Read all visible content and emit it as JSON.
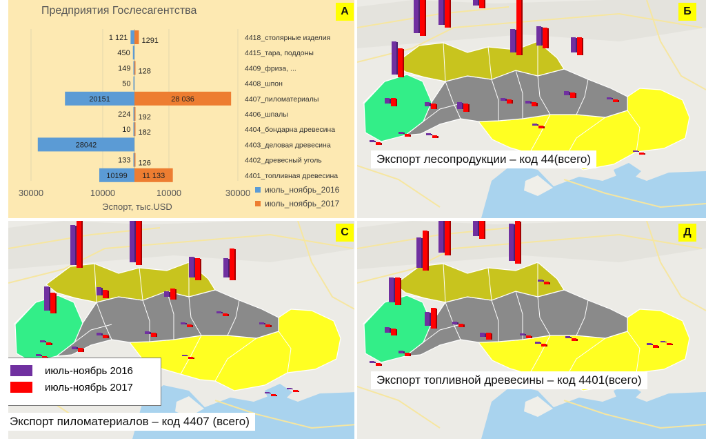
{
  "panels": {
    "a": {
      "letter": "A"
    },
    "b": {
      "letter": "Б",
      "caption": "Экспорт лесопродукции – код 44(всего)"
    },
    "c": {
      "letter": "С",
      "caption": "Экспорт пиломатериалов  – код 4407 (всего)"
    },
    "d": {
      "letter": "Д",
      "caption": "Экспорт топливной древесины  – код 4401(всего)"
    }
  },
  "map_legend": {
    "item_2016": "июль-ноябрь  2016",
    "item_2017": "июль-ноябрь  2017",
    "color_2016": "#7030a0",
    "color_2017": "#ff0000"
  },
  "map_colors": {
    "green": "#33ee88",
    "olive": "#c8c41e",
    "gray": "#8a8a8a",
    "yellow": "#ffff22",
    "water": "#a9d3ee",
    "land": "#ecebe6"
  },
  "chart_data": {
    "type": "bar",
    "orientation": "horizontal-diverging",
    "title": "Предприятия  Гослесагентства",
    "xlabel": "Эспорт, тыс.USD",
    "xticks": [
      "30000",
      "10000",
      "10000",
      "30000"
    ],
    "xlim": [
      -30000,
      30000
    ],
    "legend_position": "bottom-right",
    "categories": [
      "4418_столярные  изделия",
      "4415_тара,  поддоны",
      "4409_фриза, ...",
      "4408_шпон",
      "4407_пиломатериалы",
      "4406_шпалы",
      "4404_бондарна  древесина",
      "4403_деловая древесина",
      "4402_древесный  уголь",
      "4401_топливная  древесина"
    ],
    "series": [
      {
        "name": "июль_ноябрь_2016",
        "color": "#5b9bd5",
        "values": [
          1121,
          450,
          149,
          50,
          20151,
          224,
          10,
          28042,
          133,
          10199
        ],
        "labels": [
          "1 121",
          "450",
          "149",
          "50",
          "20151",
          "224",
          "10",
          "28042",
          "133",
          "10199"
        ]
      },
      {
        "name": "июль_ноябрь_2017",
        "color": "#ed7d31",
        "values": [
          1291,
          null,
          128,
          null,
          28036,
          192,
          182,
          null,
          126,
          11133
        ],
        "labels": [
          "1291",
          "",
          "128",
          "",
          "28 036",
          "192",
          "182",
          "",
          "126",
          "11 133"
        ]
      }
    ]
  }
}
